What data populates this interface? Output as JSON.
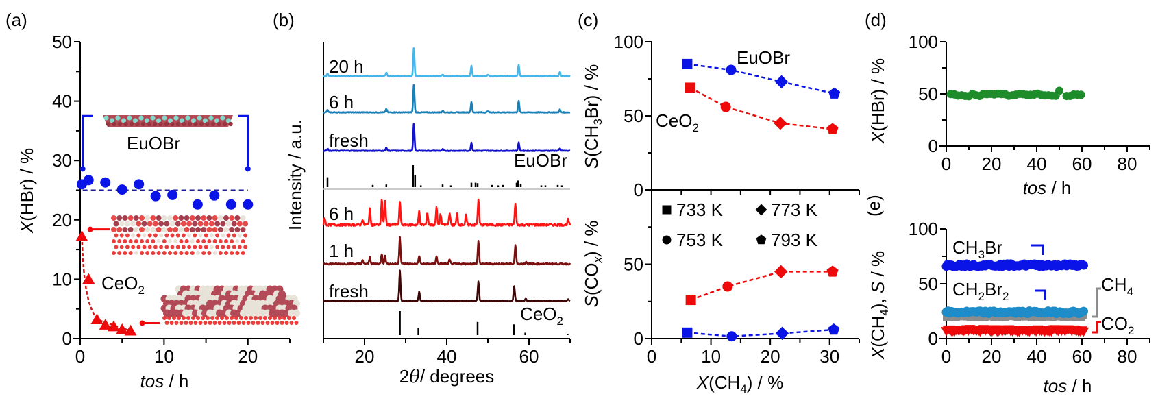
{
  "chart_data": [
    {
      "panel": "(a)",
      "type": "scatter",
      "xlabel": "tos / h",
      "xlabel_italic": "tos",
      "xlabel_rest": " / h",
      "ylabel": "X(HBr) / %",
      "ylabel_italic": "X",
      "ylabel_rest": "(HBr) / %",
      "xlim": [
        0,
        25
      ],
      "ylim": [
        0,
        50
      ],
      "xticks": [
        0,
        10,
        20
      ],
      "yticks": [
        0,
        10,
        20,
        30,
        40,
        50
      ],
      "series": [
        {
          "name": "EuOBr",
          "label": "EuOBr",
          "color": "#0a14e6",
          "marker": "circle",
          "x": [
            0.2,
            1,
            3,
            5,
            7,
            9,
            11,
            14,
            16,
            18,
            20
          ],
          "y": [
            26.0,
            26.7,
            26.3,
            25.1,
            26.0,
            24.0,
            24.2,
            22.6,
            24.1,
            22.6,
            22.6
          ],
          "mean_line": 25.0
        },
        {
          "name": "CeO2",
          "label": "CeO",
          "label_sub": "2",
          "color": "#ee0a0a",
          "marker": "triangle",
          "x": [
            0.2,
            1,
            2,
            3,
            4,
            5,
            6
          ],
          "y": [
            17.2,
            10.0,
            3.2,
            2.3,
            2.0,
            1.5,
            1.3
          ]
        }
      ]
    },
    {
      "panel": "(b)",
      "type": "line",
      "xlabel": "2θ / degrees",
      "xlabel_italic": "θ",
      "ylabel": "Intensity / a.u.",
      "xlim": [
        10,
        70
      ],
      "xticks": [
        20,
        40,
        60
      ],
      "series": [
        {
          "name": "EuOBr 20 h",
          "label": "20 h",
          "color": "#45b6ea",
          "peaks": [
            [
              11,
              0.08
            ],
            [
              25.3,
              0.12
            ],
            [
              32.0,
              1.0
            ],
            [
              39,
              0.06
            ],
            [
              46,
              0.35
            ],
            [
              50,
              0.05
            ],
            [
              57.5,
              0.4
            ],
            [
              67.5,
              0.15
            ]
          ]
        },
        {
          "name": "EuOBr 6 h",
          "label": "6 h",
          "color": "#1a80b8",
          "peaks": [
            [
              11,
              0.08
            ],
            [
              25.3,
              0.12
            ],
            [
              32.0,
              1.0
            ],
            [
              39,
              0.06
            ],
            [
              46,
              0.35
            ],
            [
              50,
              0.05
            ],
            [
              57.5,
              0.4
            ],
            [
              67.5,
              0.1
            ]
          ]
        },
        {
          "name": "EuOBr fresh",
          "label": "fresh",
          "color": "#1212cc",
          "peaks": [
            [
              11,
              0.08
            ],
            [
              25.3,
              0.12
            ],
            [
              32.0,
              1.0
            ],
            [
              39,
              0.06
            ],
            [
              46,
              0.3
            ],
            [
              57.5,
              0.3
            ],
            [
              67.5,
              0.08
            ]
          ]
        },
        {
          "name": "CeO2 6 h",
          "label": "6 h",
          "color": "#ff1414",
          "peaks": [
            [
              10.3,
              0.25
            ],
            [
              19.5,
              0.2
            ],
            [
              21.3,
              0.6
            ],
            [
              24.2,
              0.95
            ],
            [
              25.0,
              0.9
            ],
            [
              28.6,
              0.85
            ],
            [
              33.3,
              0.5
            ],
            [
              35.3,
              0.45
            ],
            [
              37.5,
              0.65
            ],
            [
              38.5,
              0.4
            ],
            [
              40.7,
              0.45
            ],
            [
              42.5,
              0.4
            ],
            [
              44.7,
              0.35
            ],
            [
              47.7,
              0.95
            ],
            [
              56.7,
              0.8
            ],
            [
              69.5,
              0.2
            ]
          ]
        },
        {
          "name": "CeO2 1 h",
          "label": "1 h",
          "color": "#7a0f0f",
          "peaks": [
            [
              19.5,
              0.12
            ],
            [
              21.3,
              0.25
            ],
            [
              24.2,
              0.38
            ],
            [
              25.0,
              0.3
            ],
            [
              28.6,
              1.0
            ],
            [
              33.3,
              0.3
            ],
            [
              37.5,
              0.28
            ],
            [
              40.7,
              0.15
            ],
            [
              47.7,
              0.85
            ],
            [
              56.7,
              0.7
            ],
            [
              59.3,
              0.08
            ]
          ]
        },
        {
          "name": "CeO2 fresh",
          "label": "fresh",
          "color": "#3c0606",
          "peaks": [
            [
              28.6,
              1.0
            ],
            [
              33.3,
              0.3
            ],
            [
              47.7,
              0.65
            ],
            [
              56.4,
              0.5
            ],
            [
              59.2,
              0.08
            ],
            [
              69.5,
              0.05
            ]
          ]
        }
      ],
      "references": [
        {
          "name": "EuOBr",
          "label": "EuOBr",
          "sticks": [
            [
              11,
              0.45
            ],
            [
              22,
              0.1
            ],
            [
              25.3,
              0.12
            ],
            [
              31.8,
              1.0
            ],
            [
              32.3,
              0.55
            ],
            [
              33.7,
              0.08
            ],
            [
              39,
              0.12
            ],
            [
              41,
              0.08
            ],
            [
              46,
              0.2
            ],
            [
              47,
              0.2
            ],
            [
              47.5,
              0.18
            ],
            [
              51,
              0.1
            ],
            [
              52.5,
              0.08
            ],
            [
              53.7,
              0.1
            ],
            [
              57,
              0.2
            ],
            [
              57.3,
              0.3
            ],
            [
              58,
              0.15
            ],
            [
              63,
              0.08
            ],
            [
              64,
              0.08
            ],
            [
              67,
              0.1
            ],
            [
              68,
              0.08
            ]
          ]
        },
        {
          "name": "CeO2",
          "label": "CeO",
          "label_sub": "2",
          "sticks": [
            [
              28.6,
              1.0
            ],
            [
              33.1,
              0.3
            ],
            [
              47.5,
              0.55
            ],
            [
              56.3,
              0.45
            ],
            [
              59.1,
              0.1
            ],
            [
              69.4,
              0.05
            ]
          ]
        }
      ]
    },
    {
      "panel": "(c)",
      "type": "scatter",
      "xlabel": "X(CH4) / %",
      "xlim": [
        0,
        35
      ],
      "xticks": [
        0,
        10,
        20,
        30
      ],
      "top": {
        "ylabel": "S(CH3Br) / %",
        "ylim": [
          0,
          100
        ],
        "yticks": [
          0,
          50,
          100
        ],
        "series": [
          {
            "name": "EuOBr",
            "label": "EuOBr",
            "color": "#0a14e6",
            "x": [
              6.0,
              13.4,
              21.9,
              30.8
            ],
            "y": [
              85,
              81,
              73,
              65
            ]
          },
          {
            "name": "CeO2",
            "label": "CeO",
            "label_sub": "2",
            "color": "#ee0a0a",
            "x": [
              6.5,
              12.5,
              21.7,
              30.5
            ],
            "y": [
              69,
              56,
              45,
              41
            ]
          }
        ]
      },
      "bottom": {
        "ylabel": "S(COx) / %",
        "ylim": [
          0,
          100
        ],
        "yticks": [
          0,
          50
        ],
        "series": [
          {
            "name": "CeO2",
            "color": "#ee0a0a",
            "x": [
              6.6,
              12.8,
              21.8,
              30.5
            ],
            "y": [
              26,
              35,
              45,
              45
            ]
          },
          {
            "name": "EuOBr",
            "color": "#0a14e6",
            "x": [
              6.0,
              13.5,
              22.0,
              30.7
            ],
            "y": [
              4,
              1.5,
              3.5,
              6
            ]
          }
        ]
      },
      "markers_by_point": [
        "square",
        "circle",
        "diamond",
        "pentagon"
      ],
      "legend": [
        {
          "marker": "square",
          "label": "733 K"
        },
        {
          "marker": "diamond",
          "label": "773 K"
        },
        {
          "marker": "circle",
          "label": "753 K"
        },
        {
          "marker": "pentagon",
          "label": "793 K"
        }
      ],
      "legend_position": "top-left of lower panel"
    },
    {
      "panel": "(d)",
      "type": "scatter",
      "xlabel": "tos / h",
      "ylabel": "X(HBr) / %",
      "xlim": [
        0,
        90
      ],
      "ylim": [
        0,
        100
      ],
      "xticks": [
        0,
        20,
        40,
        60,
        80
      ],
      "yticks": [
        0,
        50,
        100
      ],
      "series": [
        {
          "name": "X(HBr)",
          "color": "#1e8c2a",
          "x_range": [
            2,
            60
          ],
          "mean": 49,
          "spike": [
            50,
            53
          ]
        }
      ]
    },
    {
      "panel": "(e)",
      "type": "scatter",
      "xlabel": "tos / h",
      "ylabel": "X(CH4), S / %",
      "xlim": [
        0,
        90
      ],
      "ylim": [
        0,
        100
      ],
      "xticks": [
        0,
        20,
        40,
        60,
        80
      ],
      "yticks": [
        0,
        50,
        100
      ],
      "series": [
        {
          "name": "CH3Br",
          "label": "CH",
          "label_sub": "3",
          "label_rest": "Br",
          "color": "#0a14e6",
          "marker": "circle",
          "x_range": [
            0,
            61
          ],
          "mean": 67,
          "axis_bracket": "left",
          "bracket_color": "#0a14e6"
        },
        {
          "name": "CH2Br2",
          "label": "CH",
          "label_sub": "2",
          "label_rest": "Br",
          "label_sub2": "2",
          "color": "#1e8cc8",
          "marker": "circle",
          "x_range": [
            0,
            61
          ],
          "mean": 24,
          "axis_bracket": "left",
          "bracket_color": "#0a14e6"
        },
        {
          "name": "CH4",
          "label": "CH",
          "label_sub": "4",
          "color": "#8c8c8c",
          "marker": "square",
          "x_range": [
            0,
            61
          ],
          "mean": 20,
          "axis_bracket": "right",
          "bracket_color": "#8c8c8c"
        },
        {
          "name": "CO2",
          "label": "CO",
          "label_sub": "2",
          "color": "#ee0a0a",
          "marker": "triangle-down",
          "x_range": [
            0,
            61
          ],
          "mean": 7.5,
          "axis_bracket": "right",
          "bracket_color": "#ee0a0a"
        }
      ]
    }
  ],
  "panel_labels": [
    "(a)",
    "(b)",
    "(c)",
    "(d)",
    "(e)"
  ],
  "texts": {
    "a_xlabel_i": "tos",
    "a_xlabel_r": " / h",
    "a_ylabel_i": "X",
    "a_ylabel_r": "(HBr) / %",
    "a_euobr": "EuOBr",
    "a_ceo": "CeO",
    "a_ceo_sub": "2",
    "b_ylabel": "Intensity / a.u.",
    "b_xlabel_2": "2",
    "b_xlabel_theta": "θ",
    "b_xlabel_r": "/ degrees",
    "c_top_ylabel_s": "S",
    "c_top_ylabel_a": "(CH",
    "c_top_ylabel_sub": "3",
    "c_top_ylabel_b": "Br) / %",
    "c_bot_ylabel_s": "S",
    "c_bot_ylabel_a": "(CO",
    "c_bot_ylabel_sub": "x",
    "c_bot_ylabel_b": ") / %",
    "c_xlabel_x": "X",
    "c_xlabel_a": "(CH",
    "c_xlabel_sub": "4",
    "c_xlabel_b": ") / %",
    "c_euobr": "EuOBr",
    "c_ceo": "CeO",
    "c_ceo_sub": "2",
    "d_ylabel_x": "X",
    "d_ylabel_r": "(HBr) / %",
    "d_xlabel_i": "tos",
    "d_xlabel_r": " / h",
    "e_ylabel_x": "X",
    "e_ylabel_a": "(CH",
    "e_ylabel_sub": "4",
    "e_ylabel_b": "), ",
    "e_ylabel_s": "S",
    "e_ylabel_c": " / %",
    "e_xlabel_i": "tos",
    "e_xlabel_r": " / h"
  }
}
